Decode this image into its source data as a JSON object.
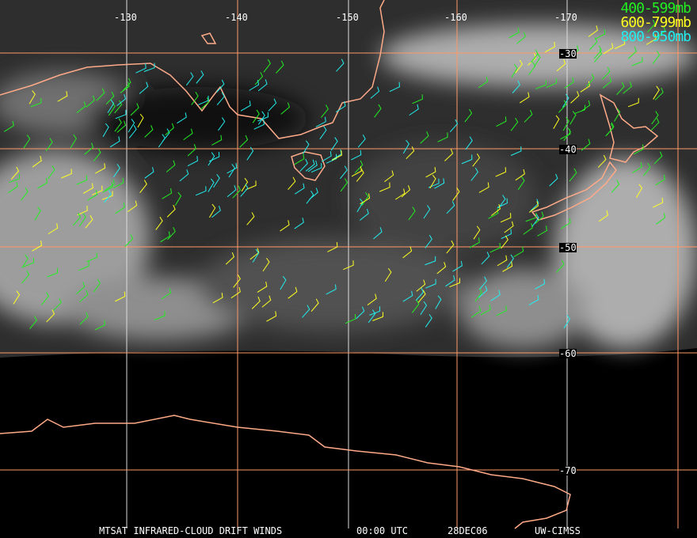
{
  "legend": [
    {
      "label": "400-599mb",
      "color": "#22ee22"
    },
    {
      "label": "600-799mb",
      "color": "#ffff22"
    },
    {
      "label": "800-950mb",
      "color": "#22eeee"
    }
  ],
  "longitude_labels": [
    "-130",
    "-140",
    "-150",
    "-160",
    "-170"
  ],
  "latitude_labels": [
    "-30",
    "-40",
    "-50",
    "-60",
    "-70"
  ],
  "caption": {
    "product": "MTSAT INFRARED-CLOUD DRIFT WINDS",
    "time": "00:00 UTC",
    "date": "28DEC06",
    "source": "UW-CIMSS"
  },
  "colors": {
    "coastline": "#ffaa88",
    "grid_lat": "#ff9966",
    "grid_lon": "#dddddd"
  }
}
